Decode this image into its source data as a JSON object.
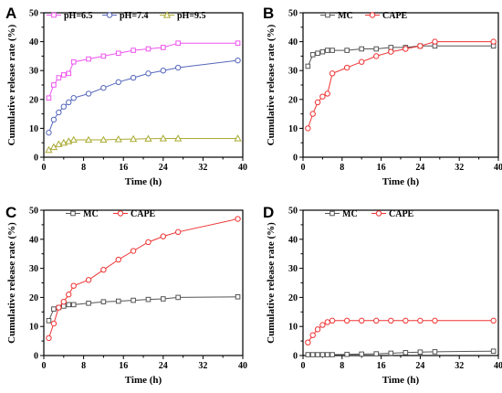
{
  "colors": {
    "black": "#000000",
    "magenta": "#ee55ee",
    "blue": "#5566bb",
    "olive": "#aaaa33",
    "gray": "#555555",
    "red": "#ee3333"
  },
  "chart_data": [
    {
      "type": "line",
      "panel_label": "A",
      "xlabel": "Time (h)",
      "ylabel": "Cumulative release rate (%)",
      "xlim": [
        0,
        40
      ],
      "ylim": [
        0,
        50
      ],
      "xticks": [
        0,
        8,
        16,
        24,
        32,
        40
      ],
      "yticks": [
        0,
        10,
        20,
        30,
        40,
        50
      ],
      "legend_position": "top",
      "series": [
        {
          "name": "pH=6.5",
          "color": "#ee55ee",
          "marker": "square",
          "x": [
            1,
            2,
            3,
            4,
            5,
            6,
            9,
            12,
            15,
            18,
            21,
            24,
            27,
            39
          ],
          "y": [
            20.5,
            25,
            27.5,
            28.5,
            29,
            33,
            34,
            35,
            36,
            37,
            37.5,
            38,
            39.5,
            39.5
          ]
        },
        {
          "name": "pH=7.4",
          "color": "#5566bb",
          "marker": "circle",
          "x": [
            1,
            2,
            3,
            4,
            5,
            6,
            9,
            12,
            15,
            18,
            21,
            24,
            27,
            39
          ],
          "y": [
            8.5,
            13,
            15.5,
            17.5,
            19,
            20.5,
            22,
            24,
            26,
            27.5,
            29,
            30,
            31,
            33.5
          ]
        },
        {
          "name": "pH=9.5",
          "color": "#aaaa33",
          "marker": "triangle",
          "x": [
            1,
            2,
            3,
            4,
            5,
            6,
            9,
            12,
            15,
            18,
            21,
            24,
            27,
            39
          ],
          "y": [
            2.5,
            3.5,
            4.5,
            5,
            5.5,
            6,
            6,
            6,
            6.2,
            6.3,
            6.4,
            6.5,
            6.5,
            6.5
          ]
        }
      ]
    },
    {
      "type": "line",
      "panel_label": "B",
      "xlabel": "Time (h)",
      "ylabel": "Cumulative release rate (%)",
      "xlim": [
        0,
        40
      ],
      "ylim": [
        0,
        50
      ],
      "xticks": [
        0,
        8,
        16,
        24,
        32,
        40
      ],
      "yticks": [
        0,
        10,
        20,
        30,
        40,
        50
      ],
      "legend_position": "top",
      "series": [
        {
          "name": "MC",
          "color": "#555555",
          "marker": "square",
          "x": [
            1,
            2,
            3,
            4,
            5,
            6,
            9,
            12,
            15,
            18,
            21,
            24,
            27,
            39
          ],
          "y": [
            31.5,
            35.5,
            36,
            36.5,
            37,
            37,
            37,
            37.5,
            37.5,
            38,
            38,
            38.5,
            38.5,
            38.5
          ]
        },
        {
          "name": "CAPE",
          "color": "#ee3333",
          "marker": "circle",
          "x": [
            1,
            2,
            3,
            4,
            5,
            6,
            9,
            12,
            15,
            18,
            21,
            24,
            27,
            39
          ],
          "y": [
            10,
            15,
            19,
            21,
            22,
            29,
            31,
            33,
            35,
            36.5,
            37.5,
            38.5,
            40,
            40
          ]
        }
      ]
    },
    {
      "type": "line",
      "panel_label": "C",
      "xlabel": "Time (h)",
      "ylabel": "Cumulative release rate (%)",
      "xlim": [
        0,
        40
      ],
      "ylim": [
        0,
        50
      ],
      "xticks": [
        0,
        8,
        16,
        24,
        32,
        40
      ],
      "yticks": [
        0,
        10,
        20,
        30,
        40,
        50
      ],
      "legend_position": "top",
      "series": [
        {
          "name": "MC",
          "color": "#555555",
          "marker": "square",
          "x": [
            1,
            2,
            3,
            4,
            5,
            6,
            9,
            12,
            15,
            18,
            21,
            24,
            27,
            39
          ],
          "y": [
            12,
            16,
            16.5,
            17,
            17.5,
            17.5,
            18,
            18.5,
            18.7,
            19,
            19.3,
            19.5,
            20,
            20.2
          ]
        },
        {
          "name": "CAPE",
          "color": "#ee3333",
          "marker": "circle",
          "x": [
            1,
            2,
            3,
            4,
            5,
            6,
            9,
            12,
            15,
            18,
            21,
            24,
            27,
            39
          ],
          "y": [
            6,
            11,
            16.5,
            18.5,
            21,
            24,
            26,
            29.5,
            33,
            36,
            39,
            41,
            42.5,
            47
          ]
        }
      ]
    },
    {
      "type": "line",
      "panel_label": "D",
      "xlabel": "Time (h)",
      "ylabel": "Cumulative release rate (%)",
      "xlim": [
        0,
        40
      ],
      "ylim": [
        0,
        50
      ],
      "xticks": [
        0,
        8,
        16,
        24,
        32,
        40
      ],
      "yticks": [
        0,
        10,
        20,
        30,
        40,
        50
      ],
      "legend_position": "top",
      "series": [
        {
          "name": "MC",
          "color": "#555555",
          "marker": "square",
          "x": [
            1,
            2,
            3,
            4,
            5,
            6,
            9,
            12,
            15,
            18,
            21,
            24,
            27,
            39
          ],
          "y": [
            0.3,
            0.3,
            0.3,
            0.3,
            0.3,
            0.3,
            0.4,
            0.5,
            0.6,
            0.8,
            1,
            1.2,
            1.3,
            1.5
          ]
        },
        {
          "name": "CAPE",
          "color": "#ee3333",
          "marker": "circle",
          "x": [
            1,
            2,
            3,
            4,
            5,
            6,
            9,
            12,
            15,
            18,
            21,
            24,
            27,
            39
          ],
          "y": [
            4.5,
            7,
            9,
            10.5,
            11.5,
            12,
            12,
            12,
            12,
            12,
            12,
            12,
            12,
            12
          ]
        }
      ]
    }
  ]
}
